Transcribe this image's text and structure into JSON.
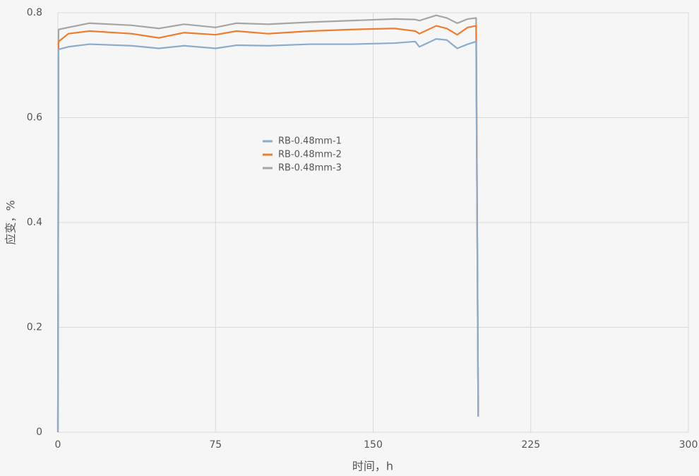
{
  "chart_data": {
    "type": "line",
    "xlabel": "时间，h",
    "ylabel": "应变，%",
    "x": [
      0,
      0.3,
      5,
      15,
      35,
      48,
      60,
      75,
      85,
      100,
      120,
      140,
      160,
      170,
      172,
      180,
      185,
      190,
      195,
      199,
      200
    ],
    "series": [
      {
        "name": "RB-0.48mm-1",
        "color": "#8aaccd",
        "values": [
          0,
          0.73,
          0.735,
          0.74,
          0.737,
          0.732,
          0.737,
          0.732,
          0.738,
          0.737,
          0.74,
          0.74,
          0.742,
          0.745,
          0.735,
          0.75,
          0.748,
          0.732,
          0.74,
          0.745,
          0.03
        ]
      },
      {
        "name": "RB-0.48mm-2",
        "color": "#ed7d31",
        "values": [
          0,
          0.745,
          0.76,
          0.765,
          0.76,
          0.752,
          0.762,
          0.758,
          0.765,
          0.76,
          0.765,
          0.768,
          0.77,
          0.765,
          0.76,
          0.775,
          0.77,
          0.758,
          0.772,
          0.775,
          0.03
        ]
      },
      {
        "name": "RB-0.48mm-3",
        "color": "#a5a5a5",
        "values": [
          0,
          0.768,
          0.772,
          0.78,
          0.776,
          0.77,
          0.778,
          0.772,
          0.78,
          0.778,
          0.782,
          0.785,
          0.788,
          0.787,
          0.785,
          0.795,
          0.79,
          0.78,
          0.788,
          0.79,
          0.03
        ]
      }
    ],
    "xlim": [
      0,
      300
    ],
    "xticks": [
      0,
      75,
      150,
      225,
      300
    ],
    "ylim": [
      0,
      0.8
    ],
    "yticks": [
      0,
      0.2,
      0.4,
      0.6,
      0.8
    ],
    "grid": true
  }
}
